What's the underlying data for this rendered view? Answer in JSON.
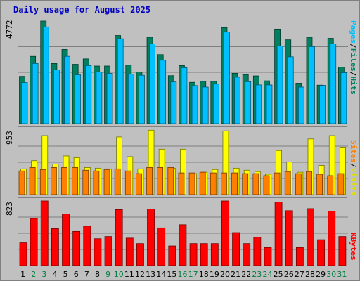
{
  "title": "Daily usage for August 2025",
  "colors": {
    "background": "#c0c0c0",
    "title": "#0000c0",
    "pages": "#00c0ff",
    "files": "#008060",
    "hits": "#008060",
    "visits": "#ffff00",
    "sites": "#ff8000",
    "kbytes": "#ff0000",
    "weekday": "#000000",
    "weekend": "#008040",
    "gridline": "#808080"
  },
  "axis_labels": {
    "hits_max": "4772",
    "visits_max": "953",
    "kbytes_max": "823"
  },
  "side_labels": {
    "pages": "Pages",
    "files": "Files",
    "hits": "Hits",
    "sites": "Sites",
    "visits": "Visits",
    "kbytes": "KBytes",
    "sep": "/"
  },
  "chart_data": [
    {
      "type": "bar",
      "panel": "hits",
      "title": "Daily usage for August 2025",
      "categories": [
        "1",
        "2",
        "3",
        "4",
        "5",
        "6",
        "7",
        "8",
        "9",
        "10",
        "11",
        "12",
        "13",
        "14",
        "15",
        "16",
        "17",
        "18",
        "19",
        "20",
        "21",
        "22",
        "23",
        "24",
        "25",
        "26",
        "27",
        "28",
        "29",
        "30",
        "31"
      ],
      "weekend_days": [
        "2",
        "3",
        "9",
        "10",
        "16",
        "17",
        "23",
        "24",
        "30",
        "31"
      ],
      "ylim": [
        0,
        4772
      ],
      "series": [
        {
          "name": "Hits",
          "color": "#008060",
          "values": [
            2200,
            3130,
            4772,
            2800,
            3450,
            2760,
            3010,
            2680,
            2680,
            4100,
            2720,
            2400,
            4020,
            3210,
            2230,
            2700,
            1920,
            1970,
            1970,
            4470,
            2340,
            2280,
            2220,
            1990,
            4400,
            3900,
            1880,
            4020,
            1790,
            3970,
            2630
          ]
        },
        {
          "name": "Files",
          "color": "#008060",
          "values": [
            2200,
            3130,
            4772,
            2800,
            3450,
            2760,
            3010,
            2680,
            2680,
            4100,
            2720,
            2400,
            4020,
            3210,
            2230,
            2700,
            1920,
            1970,
            1970,
            4470,
            2340,
            2280,
            2220,
            1990,
            4400,
            3900,
            1880,
            4020,
            1790,
            3970,
            2630
          ]
        },
        {
          "name": "Pages",
          "color": "#00c0ff",
          "values": [
            1910,
            2800,
            4500,
            2500,
            3130,
            2270,
            2700,
            2400,
            2340,
            3950,
            2300,
            2250,
            3710,
            2950,
            1940,
            2600,
            1770,
            1700,
            1840,
            4260,
            2160,
            1950,
            1800,
            1800,
            3610,
            3110,
            1700,
            3580,
            1780,
            3710,
            2370
          ]
        }
      ]
    },
    {
      "type": "bar",
      "panel": "visits",
      "categories": [
        "1",
        "2",
        "3",
        "4",
        "5",
        "6",
        "7",
        "8",
        "9",
        "10",
        "11",
        "12",
        "13",
        "14",
        "15",
        "16",
        "17",
        "18",
        "19",
        "20",
        "21",
        "22",
        "23",
        "24",
        "25",
        "26",
        "27",
        "28",
        "29",
        "30",
        "31"
      ],
      "ylim": [
        0,
        953
      ],
      "series": [
        {
          "name": "Visits",
          "color": "#ffff00",
          "values": [
            380,
            500,
            870,
            450,
            570,
            545,
            400,
            390,
            380,
            850,
            560,
            380,
            950,
            670,
            390,
            670,
            310,
            330,
            370,
            940,
            390,
            360,
            340,
            300,
            650,
            480,
            330,
            820,
            430,
            870,
            700
          ]
        },
        {
          "name": "Sites",
          "color": "#ff8000",
          "values": [
            350,
            400,
            370,
            400,
            400,
            400,
            360,
            350,
            370,
            380,
            350,
            310,
            400,
            400,
            400,
            320,
            320,
            330,
            320,
            320,
            320,
            310,
            310,
            280,
            320,
            340,
            310,
            340,
            300,
            280,
            310
          ]
        }
      ]
    },
    {
      "type": "bar",
      "panel": "kbytes",
      "categories": [
        "1",
        "2",
        "3",
        "4",
        "5",
        "6",
        "7",
        "8",
        "9",
        "10",
        "11",
        "12",
        "13",
        "14",
        "15",
        "16",
        "17",
        "18",
        "19",
        "20",
        "21",
        "22",
        "23",
        "24",
        "25",
        "26",
        "27",
        "28",
        "29",
        "30",
        "31"
      ],
      "ylim": [
        0,
        823
      ],
      "series": [
        {
          "name": "KBytes",
          "color": "#ff0000",
          "values": [
            290,
            600,
            823,
            470,
            656,
            435,
            502,
            342,
            370,
            712,
            350,
            280,
            720,
            480,
            250,
            520,
            280,
            280,
            280,
            823,
            420,
            280,
            360,
            230,
            810,
            699,
            230,
            725,
            330,
            693,
            370
          ]
        }
      ]
    }
  ]
}
